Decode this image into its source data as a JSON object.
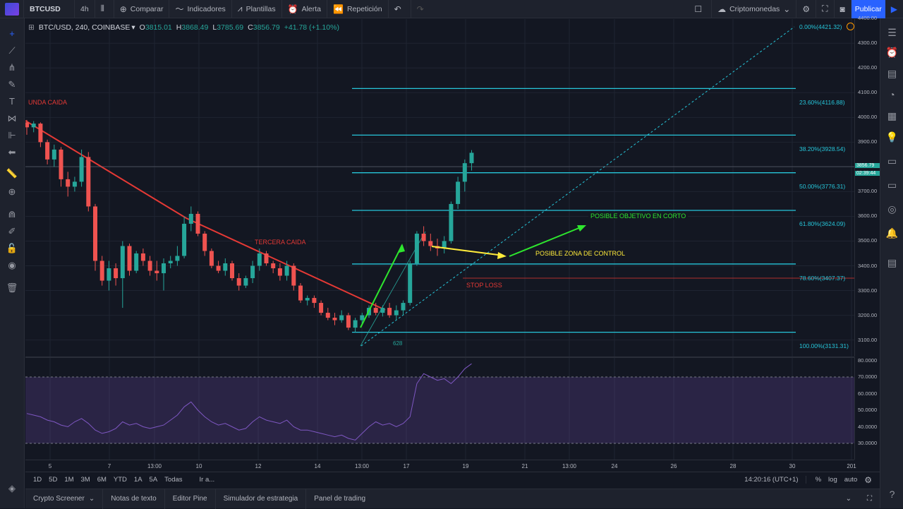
{
  "topbar": {
    "symbol": "BTCUSD",
    "interval": "4h",
    "compare": "Comparar",
    "indicators": "Indicadores",
    "templates": "Plantillas",
    "alert": "Alerta",
    "replay": "Repetición",
    "watchlist": "Criptomonedas",
    "publish": "Publicar"
  },
  "legend": {
    "title": "BTC/USD, 240, COINBASE",
    "open_label": "O",
    "open": "3815.01",
    "high_label": "H",
    "high": "3868.49",
    "low_label": "L",
    "low": "3785.69",
    "close_label": "C",
    "close": "3856.79",
    "change": "+41.78 (+1.10%)"
  },
  "price_axis": [
    "4400.00",
    "4300.00",
    "4200.00",
    "4100.00",
    "4000.00",
    "3900.00",
    "3800.00",
    "3700.00",
    "3600.00",
    "3500.00",
    "3400.00",
    "3300.00",
    "3200.00",
    "3100.00"
  ],
  "last_price": {
    "price": "3856.79",
    "countdown": "02:39:44"
  },
  "rsi_axis": [
    "80.0000",
    "70.0000",
    "60.0000",
    "50.0000",
    "40.0000",
    "30.0000"
  ],
  "time_axis": [
    "5",
    "7",
    "13:00",
    "10",
    "12",
    "14",
    "13:00",
    "17",
    "19",
    "21",
    "13:00",
    "24",
    "26",
    "28",
    "30",
    "201"
  ],
  "fib_levels": [
    {
      "label": "0.00%(4421.32)"
    },
    {
      "label": "23.60%(4116.88)"
    },
    {
      "label": "38.20%(3928.54)"
    },
    {
      "label": "50.00%(3776.31)"
    },
    {
      "label": "61.80%(3624.09)"
    },
    {
      "label": "78.60%(3407.37)"
    },
    {
      "label": "100.00%(3131.31)"
    }
  ],
  "annotations": {
    "segunda": "UNDA CAIDA",
    "tercera": "TERCERA CAIDA",
    "objetivo": "POSIBLE OBJETIVO EN CORTO",
    "zona": "POSIBLE ZONA DE CONTROL",
    "stop": "STOP LOSS",
    "bars_count": "628"
  },
  "ranges": [
    "1D",
    "5D",
    "1M",
    "3M",
    "6M",
    "YTD",
    "1A",
    "5A",
    "Todas",
    "Ir a..."
  ],
  "clock": "14:20:16 (UTC+1)",
  "scale_opts": [
    "%",
    "log",
    "auto"
  ],
  "bottom_tabs": [
    "Crypto Screener",
    "Notas de texto",
    "Editor Pine",
    "Simulador de estrategia",
    "Panel de trading"
  ],
  "colors": {
    "up": "#26a69a",
    "down": "#ef5350",
    "fib": "#26c6da",
    "trend": "#e53935",
    "rsi": "#7e57c2",
    "arrow_green": "#2ee62e",
    "arrow_yellow": "#ffeb3b"
  },
  "candles": [
    [
      3980,
      3990,
      3930,
      3960
    ],
    [
      3960,
      3985,
      3940,
      3975
    ],
    [
      3975,
      3980,
      3880,
      3900
    ],
    [
      3900,
      3910,
      3810,
      3830
    ],
    [
      3830,
      3890,
      3800,
      3870
    ],
    [
      3870,
      3880,
      3720,
      3750
    ],
    [
      3750,
      3780,
      3680,
      3720
    ],
    [
      3720,
      3760,
      3700,
      3740
    ],
    [
      3740,
      3870,
      3720,
      3840
    ],
    [
      3840,
      3860,
      3620,
      3640
    ],
    [
      3640,
      3650,
      3380,
      3420
    ],
    [
      3420,
      3440,
      3320,
      3340
    ],
    [
      3340,
      3420,
      3300,
      3390
    ],
    [
      3390,
      3410,
      3320,
      3350
    ],
    [
      3350,
      3500,
      3230,
      3480
    ],
    [
      3480,
      3490,
      3360,
      3380
    ],
    [
      3380,
      3460,
      3370,
      3450
    ],
    [
      3450,
      3470,
      3400,
      3420
    ],
    [
      3420,
      3440,
      3360,
      3380
    ],
    [
      3380,
      3420,
      3340,
      3370
    ],
    [
      3370,
      3430,
      3300,
      3410
    ],
    [
      3410,
      3440,
      3390,
      3420
    ],
    [
      3420,
      3480,
      3400,
      3440
    ],
    [
      3440,
      3600,
      3430,
      3570
    ],
    [
      3570,
      3640,
      3540,
      3610
    ],
    [
      3610,
      3620,
      3520,
      3530
    ],
    [
      3530,
      3540,
      3440,
      3460
    ],
    [
      3460,
      3470,
      3390,
      3400
    ],
    [
      3400,
      3420,
      3370,
      3380
    ],
    [
      3380,
      3430,
      3360,
      3410
    ],
    [
      3410,
      3420,
      3340,
      3350
    ],
    [
      3350,
      3370,
      3300,
      3320
    ],
    [
      3320,
      3360,
      3310,
      3350
    ],
    [
      3350,
      3420,
      3330,
      3400
    ],
    [
      3400,
      3470,
      3380,
      3450
    ],
    [
      3450,
      3460,
      3400,
      3410
    ],
    [
      3410,
      3420,
      3370,
      3390
    ],
    [
      3390,
      3410,
      3340,
      3360
    ],
    [
      3360,
      3420,
      3340,
      3400
    ],
    [
      3400,
      3410,
      3300,
      3320
    ],
    [
      3320,
      3330,
      3250,
      3260
    ],
    [
      3260,
      3280,
      3240,
      3270
    ],
    [
      3270,
      3280,
      3230,
      3250
    ],
    [
      3250,
      3260,
      3200,
      3210
    ],
    [
      3210,
      3230,
      3180,
      3190
    ],
    [
      3190,
      3210,
      3160,
      3180
    ],
    [
      3180,
      3220,
      3170,
      3200
    ],
    [
      3200,
      3210,
      3140,
      3150
    ],
    [
      3150,
      3190,
      3131,
      3180
    ],
    [
      3180,
      3210,
      3160,
      3200
    ],
    [
      3200,
      3240,
      3190,
      3230
    ],
    [
      3230,
      3250,
      3200,
      3210
    ],
    [
      3210,
      3240,
      3195,
      3230
    ],
    [
      3230,
      3250,
      3190,
      3200
    ],
    [
      3200,
      3240,
      3180,
      3220
    ],
    [
      3220,
      3260,
      3200,
      3250
    ],
    [
      3250,
      3420,
      3240,
      3410
    ],
    [
      3410,
      3540,
      3400,
      3530
    ],
    [
      3530,
      3560,
      3480,
      3500
    ],
    [
      3500,
      3530,
      3460,
      3480
    ],
    [
      3480,
      3510,
      3440,
      3470
    ],
    [
      3470,
      3520,
      3450,
      3500
    ],
    [
      3500,
      3660,
      3490,
      3650
    ],
    [
      3650,
      3760,
      3630,
      3740
    ],
    [
      3740,
      3830,
      3700,
      3815
    ],
    [
      3815,
      3868,
      3785,
      3857
    ]
  ],
  "rsi": [
    48,
    47,
    46,
    44,
    43,
    41,
    40,
    43,
    45,
    42,
    38,
    36,
    37,
    39,
    43,
    41,
    42,
    40,
    39,
    40,
    41,
    44,
    47,
    52,
    55,
    50,
    46,
    43,
    41,
    42,
    40,
    38,
    39,
    43,
    46,
    44,
    43,
    42,
    44,
    40,
    38,
    38,
    37,
    36,
    35,
    34,
    35,
    33,
    32,
    36,
    40,
    43,
    41,
    42,
    40,
    42,
    46,
    66,
    72,
    70,
    68,
    69,
    66,
    70,
    75,
    78
  ]
}
